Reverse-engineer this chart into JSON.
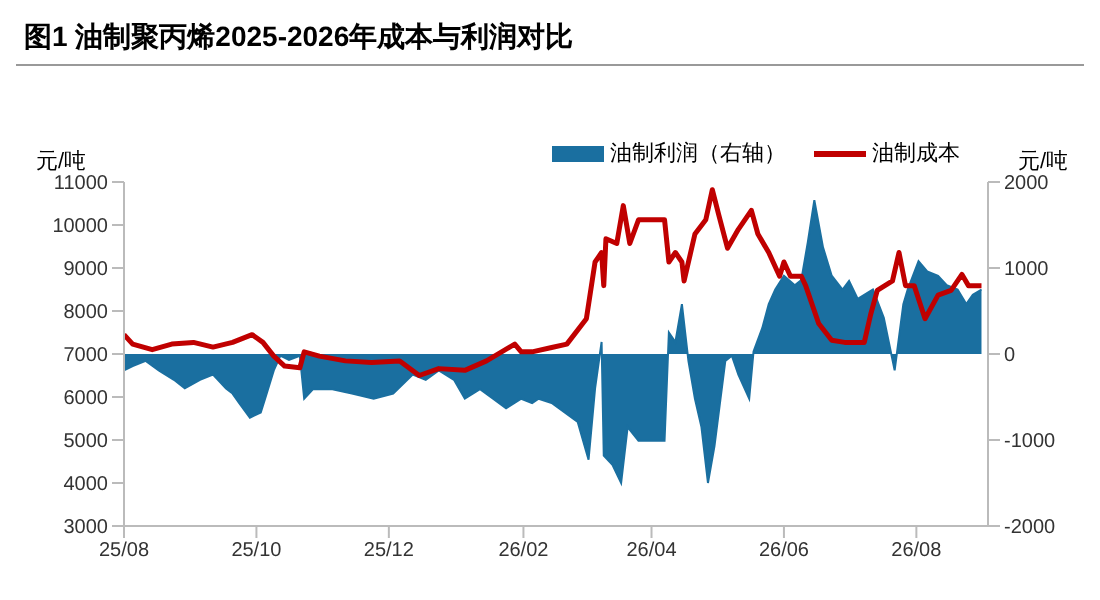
{
  "chart_data": {
    "type": "area",
    "title": "图1  油制聚丙烯2025-2026年成本与利润对比",
    "ylabel": "元/吨",
    "y2label": "元/吨",
    "xlim": [
      "2025-08-01",
      "2026-09-03"
    ],
    "xticks": [
      {
        "value": "2025-08-01",
        "label": "25/08"
      },
      {
        "value": "2025-10-01",
        "label": "25/10"
      },
      {
        "value": "2025-12-01",
        "label": "25/12"
      },
      {
        "value": "2026-02-01",
        "label": "26/02"
      },
      {
        "value": "2026-04-01",
        "label": "26/04"
      },
      {
        "value": "2026-06-01",
        "label": "26/06"
      },
      {
        "value": "2026-08-01",
        "label": "26/08"
      }
    ],
    "ylim": [
      3000,
      11000
    ],
    "yticks": [
      3000,
      4000,
      5000,
      6000,
      7000,
      8000,
      9000,
      10000,
      11000
    ],
    "y2lim": [
      -2000,
      2000
    ],
    "y2ticks": [
      -2000,
      -1000,
      0,
      1000,
      2000
    ],
    "grid": false,
    "legend": "top right",
    "marker": "none",
    "line_style": "solid",
    "series": [
      {
        "name": "油制利润（右轴）",
        "axis": "y2",
        "color": "#1a6fa0",
        "x": [
          "2025-08-01",
          "2025-08-05",
          "2025-08-11",
          "2025-08-17",
          "2025-08-24",
          "2025-08-29",
          "2025-09-05",
          "2025-09-11",
          "2025-09-17",
          "2025-09-20",
          "2025-09-23",
          "2025-09-28",
          "2025-10-03",
          "2025-10-05",
          "2025-10-09",
          "2025-10-12",
          "2025-10-16",
          "2025-10-21",
          "2025-10-23",
          "2025-10-27",
          "2025-11-05",
          "2025-11-14",
          "2025-11-24",
          "2025-12-03",
          "2025-12-12",
          "2025-12-18",
          "2025-12-24",
          "2025-12-31",
          "2026-01-05",
          "2026-01-12",
          "2026-01-18",
          "2026-01-24",
          "2026-01-31",
          "2026-02-05",
          "2026-02-08",
          "2026-02-14",
          "2026-02-20",
          "2026-02-26",
          "2026-03-03",
          "2026-03-06",
          "2026-03-09",
          "2026-03-10",
          "2026-03-14",
          "2026-03-18",
          "2026-03-21",
          "2026-03-26",
          "2026-04-07",
          "2026-04-09",
          "2026-04-12",
          "2026-04-15",
          "2026-04-18",
          "2026-04-21",
          "2026-04-24",
          "2026-04-27",
          "2026-04-30",
          "2026-05-05",
          "2026-05-08",
          "2026-05-11",
          "2026-05-16",
          "2026-05-18",
          "2026-05-22",
          "2026-05-25",
          "2026-05-28",
          "2026-06-01",
          "2026-06-06",
          "2026-06-09",
          "2026-06-12",
          "2026-06-15",
          "2026-06-19",
          "2026-06-23",
          "2026-06-28",
          "2026-07-01",
          "2026-07-05",
          "2026-07-12",
          "2026-07-17",
          "2026-07-22",
          "2026-07-26",
          "2026-07-28",
          "2026-08-02",
          "2026-08-06",
          "2026-08-11",
          "2026-08-15",
          "2026-08-20",
          "2026-08-24",
          "2026-08-27",
          "2026-08-31"
        ],
        "values": [
          -190,
          -140,
          -80,
          -190,
          -300,
          -400,
          -300,
          -240,
          -400,
          -460,
          -570,
          -740,
          -680,
          -520,
          -190,
          -20,
          -70,
          -20,
          -520,
          -410,
          -410,
          -460,
          -520,
          -460,
          -240,
          -300,
          -190,
          -300,
          -520,
          -410,
          -520,
          -630,
          -520,
          -570,
          -520,
          -570,
          -680,
          -790,
          -1230,
          -400,
          140,
          -1180,
          -1290,
          -1500,
          -850,
          -1010,
          -1010,
          250,
          140,
          580,
          -80,
          -520,
          -850,
          -1500,
          -1070,
          -80,
          -20,
          -240,
          -520,
          30,
          300,
          580,
          750,
          910,
          800,
          860,
          1300,
          1790,
          1240,
          910,
          750,
          850,
          640,
          750,
          420,
          -190,
          580,
          750,
          1080,
          960,
          910,
          800,
          750,
          580,
          690,
          750
        ]
      },
      {
        "name": "油制成本",
        "type": "line",
        "axis": "y",
        "color": "#c00000",
        "x": [
          "2025-08-01",
          "2025-08-05",
          "2025-08-14",
          "2025-08-23",
          "2025-09-02",
          "2025-09-11",
          "2025-09-20",
          "2025-09-29",
          "2025-10-04",
          "2025-10-09",
          "2025-10-14",
          "2025-10-21",
          "2025-10-23",
          "2025-10-30",
          "2025-11-11",
          "2025-11-23",
          "2025-12-06",
          "2025-12-15",
          "2025-12-24",
          "2026-01-05",
          "2026-01-15",
          "2026-01-28",
          "2026-01-31",
          "2026-02-05",
          "2026-02-14",
          "2026-02-21",
          "2026-03-02",
          "2026-03-06",
          "2026-03-09",
          "2026-03-10",
          "2026-03-11",
          "2026-03-16",
          "2026-03-19",
          "2026-03-22",
          "2026-03-26",
          "2026-04-07",
          "2026-04-09",
          "2026-04-12",
          "2026-04-15",
          "2026-04-16",
          "2026-04-21",
          "2026-04-26",
          "2026-04-29",
          "2026-05-02",
          "2026-05-06",
          "2026-05-11",
          "2026-05-17",
          "2026-05-20",
          "2026-05-25",
          "2026-05-30",
          "2026-06-01",
          "2026-06-04",
          "2026-06-09",
          "2026-06-11",
          "2026-06-17",
          "2026-06-23",
          "2026-06-29",
          "2026-07-08",
          "2026-07-11",
          "2026-07-14",
          "2026-07-21",
          "2026-07-24",
          "2026-07-27",
          "2026-07-31",
          "2026-08-05",
          "2026-08-11",
          "2026-08-17",
          "2026-08-22",
          "2026-08-25",
          "2026-08-31"
        ],
        "values": [
          7450,
          7230,
          7100,
          7230,
          7270,
          7160,
          7270,
          7450,
          7270,
          6950,
          6720,
          6680,
          7050,
          6950,
          6840,
          6800,
          6840,
          6500,
          6660,
          6620,
          6840,
          7230,
          7050,
          7050,
          7150,
          7230,
          7820,
          9140,
          9360,
          8590,
          9680,
          9570,
          10450,
          9570,
          10120,
          10120,
          9140,
          9360,
          9140,
          8700,
          9790,
          10120,
          10820,
          10230,
          9460,
          9900,
          10340,
          9790,
          9360,
          8810,
          9140,
          8810,
          8810,
          8590,
          7710,
          7320,
          7270,
          7270,
          7930,
          8480,
          8700,
          9360,
          8590,
          8590,
          7820,
          8370,
          8480,
          8850,
          8590,
          8590
        ]
      }
    ]
  }
}
